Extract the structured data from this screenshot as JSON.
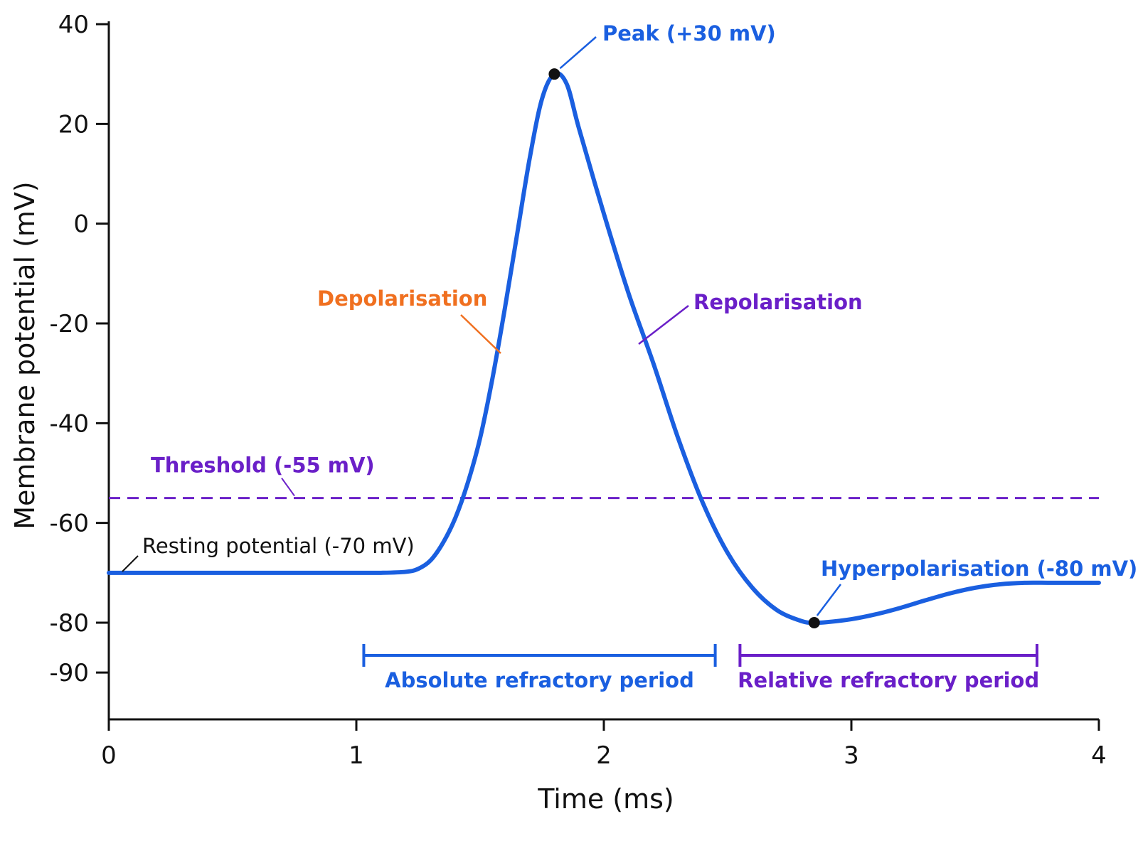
{
  "chart_data": {
    "type": "line",
    "xlabel": "Time (ms)",
    "ylabel": "Membrane potential (mV)",
    "xlim": [
      0,
      4
    ],
    "ylim": [
      -97,
      40
    ],
    "x_ticks": [
      "0",
      "1",
      "2",
      "3",
      "4"
    ],
    "y_ticks": [
      "40",
      "20",
      "0",
      "-20",
      "-40",
      "-60",
      "-80",
      "-90"
    ],
    "y_tick_values": [
      40,
      20,
      0,
      -20,
      -40,
      -60,
      -80,
      -90
    ],
    "x_tick_values": [
      0,
      1,
      2,
      3,
      4
    ],
    "grid": false,
    "series": [
      {
        "color": "#1a5fe0",
        "x": [
          0,
          0.5,
          1.0,
          1.1,
          1.2,
          1.25,
          1.3,
          1.35,
          1.4,
          1.45,
          1.5,
          1.55,
          1.6,
          1.65,
          1.7,
          1.75,
          1.8,
          1.85,
          1.9,
          2.0,
          2.1,
          2.2,
          2.3,
          2.4,
          2.5,
          2.6,
          2.7,
          2.8,
          2.85,
          2.9,
          3.0,
          3.1,
          3.2,
          3.3,
          3.4,
          3.5,
          3.6,
          3.7,
          3.8,
          3.9,
          4.0
        ],
        "y": [
          -70,
          -70,
          -70,
          -70,
          -69.8,
          -69.2,
          -67.5,
          -64,
          -59,
          -52,
          -43,
          -31,
          -17,
          -2,
          13,
          25,
          30,
          28,
          19,
          2,
          -14,
          -28,
          -43,
          -56,
          -66,
          -73,
          -77.5,
          -79.7,
          -80,
          -79.9,
          -79.3,
          -78.3,
          -77,
          -75.5,
          -74.1,
          -73,
          -72.3,
          -72,
          -72,
          -72,
          -72
        ]
      }
    ],
    "threshold": {
      "label": "Threshold (-55 mV)",
      "value": -55,
      "color": "#6a1fc8"
    },
    "points": [
      {
        "x": 1.8,
        "y": 30,
        "label": "Peak (+30 mV)",
        "color": "#1a5fe0"
      },
      {
        "x": 2.85,
        "y": -80,
        "label": "Hyperpolarisation (-80 mV)",
        "color": "#1a5fe0"
      }
    ],
    "annotations": [
      {
        "label": "Resting potential (-70 mV)",
        "x": 0.05,
        "y": -70,
        "color": "#111111"
      },
      {
        "label": "Depolarisation",
        "x": 1.6,
        "y": -27,
        "color": "#f07020"
      },
      {
        "label": "Repolarisation",
        "x": 2.15,
        "y": -25,
        "color": "#6a1fc8"
      }
    ],
    "periods": [
      {
        "label": "Absolute refractory period",
        "start": 1.03,
        "end": 2.45,
        "y": -87,
        "color": "#1a5fe0"
      },
      {
        "label": "Relative refractory period",
        "start": 2.55,
        "end": 3.75,
        "y": -87,
        "color": "#6a1fc8"
      }
    ]
  }
}
